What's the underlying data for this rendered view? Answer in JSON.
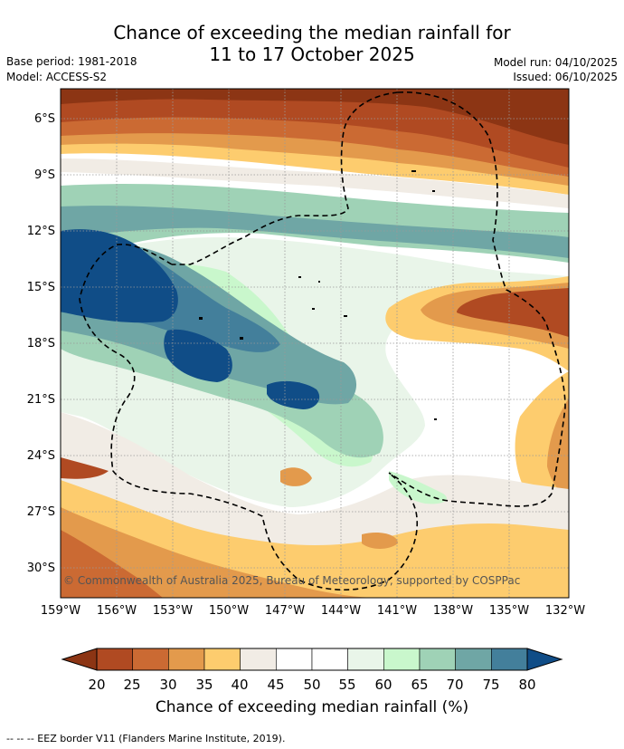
{
  "title": {
    "line1": "Chance of exceeding the median rainfall for",
    "line2": "11 to 17 October 2025"
  },
  "meta": {
    "base_period": "Base period: 1981-2018",
    "model": "Model: ACCESS-S2",
    "model_run": "Model run: 04/10/2025",
    "issued": "Issued: 06/10/2025"
  },
  "map": {
    "lat_labels": [
      "6°S",
      "9°S",
      "12°S",
      "15°S",
      "18°S",
      "21°S",
      "24°S",
      "27°S",
      "30°S"
    ],
    "lon_labels": [
      "159°W",
      "156°W",
      "153°W",
      "150°W",
      "147°W",
      "144°W",
      "141°W",
      "138°W",
      "135°W",
      "132°W"
    ],
    "copyright": "© Commonwealth of Australia 2025, Bureau of Meteorology, supported by COSPPac",
    "gridlines": "dotted"
  },
  "colorbar": {
    "title": "Chance of exceeding median rainfall (%)",
    "labels": [
      "20",
      "25",
      "30",
      "35",
      "40",
      "45",
      "50",
      "55",
      "60",
      "65",
      "70",
      "75",
      "80"
    ],
    "colors": [
      "#8c3514",
      "#b04a22",
      "#cb6a33",
      "#e39a4c",
      "#fdcc6e",
      "#f1ece5",
      "#ffffff",
      "#ffffff",
      "#e9f5e9",
      "#c9f7cc",
      "#9fd2b6",
      "#6fa6a5",
      "#437f9b",
      "#104d87"
    ]
  },
  "footnote": "-- -- -- EEZ border V11 (Flanders Marine Institute, 2019)."
}
